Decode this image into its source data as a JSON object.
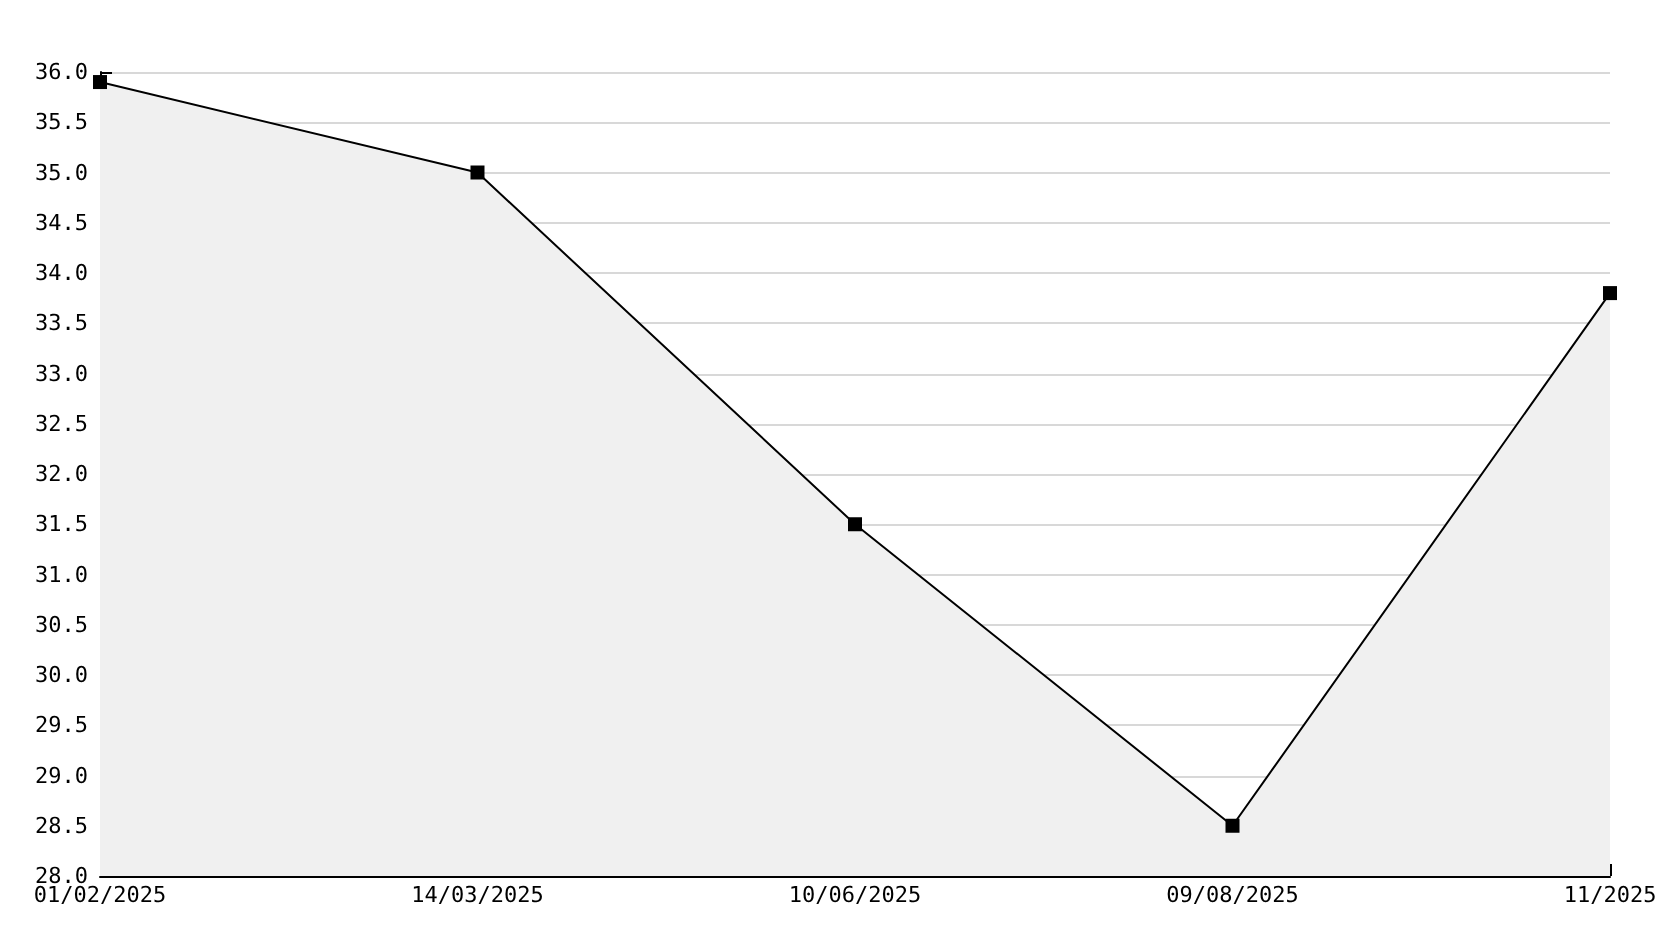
{
  "chart_data": {
    "type": "area",
    "categories": [
      "01/02/2025",
      "14/03/2025",
      "10/06/2025",
      "09/08/2025",
      "11/2025"
    ],
    "series": [
      {
        "color": "#000000",
        "values": [
          35.9,
          35.0,
          31.5,
          28.5,
          33.8
        ]
      }
    ],
    "ylim": [
      28,
      36
    ],
    "yticks": [
      {
        "value": 28,
        "label": "28.0"
      },
      {
        "value": 28.5,
        "label": "28.5"
      },
      {
        "value": 29,
        "label": "29.0"
      },
      {
        "value": 29.5,
        "label": "29.5"
      },
      {
        "value": 30,
        "label": "30.0"
      },
      {
        "value": 30.5,
        "label": "30.5"
      },
      {
        "value": 31,
        "label": "31.0"
      },
      {
        "value": 31.5,
        "label": "31.5"
      },
      {
        "value": 32,
        "label": "32.0"
      },
      {
        "value": 32.5,
        "label": "32.5"
      },
      {
        "value": 33,
        "label": "33.0"
      },
      {
        "value": 33.5,
        "label": "33.5"
      },
      {
        "value": 34,
        "label": "34.0"
      },
      {
        "value": 34.5,
        "label": "34.5"
      },
      {
        "value": 35,
        "label": "35.0"
      },
      {
        "value": 35.5,
        "label": "35.5"
      },
      {
        "value": 36,
        "label": "36.0"
      }
    ],
    "grid": "y",
    "marker": "square"
  }
}
